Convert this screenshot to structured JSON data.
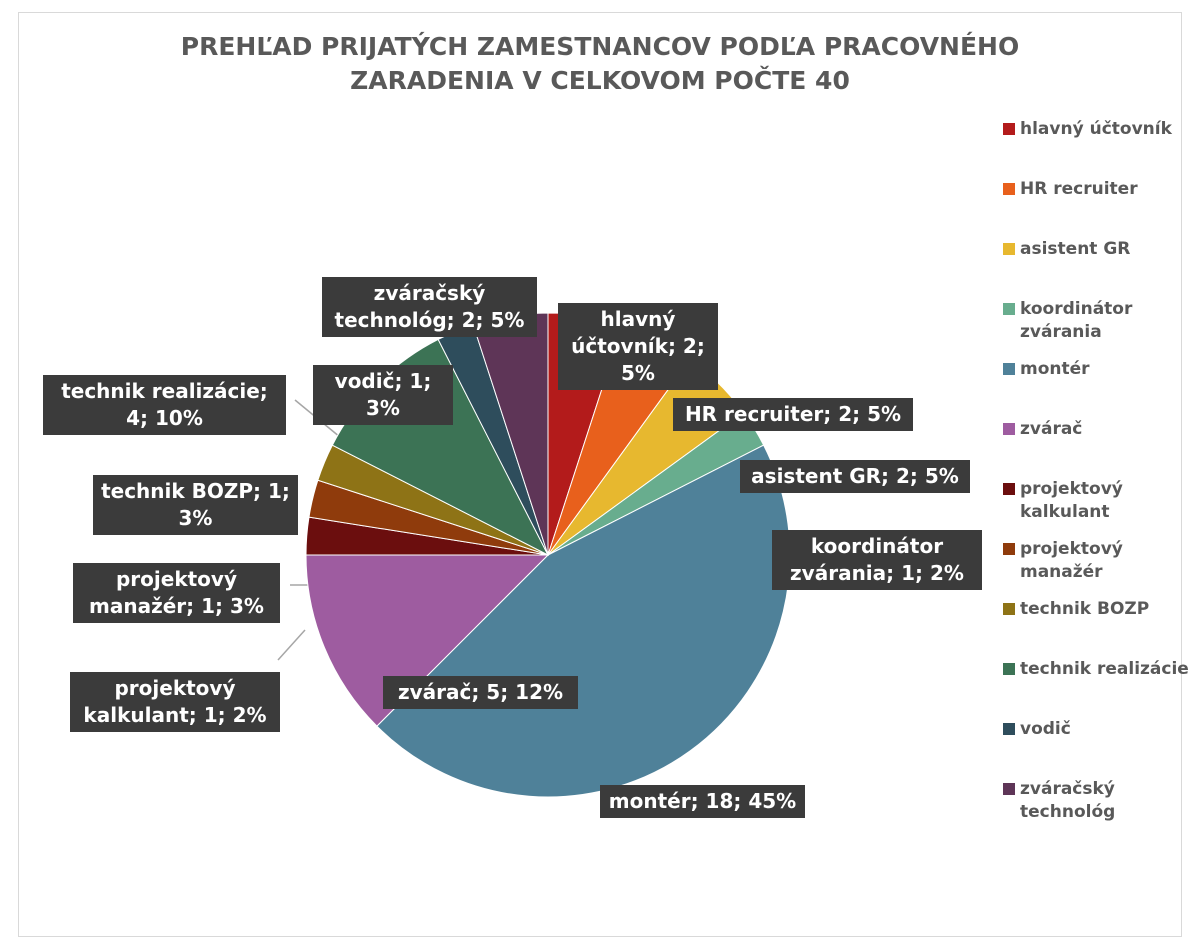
{
  "chart_data": {
    "type": "pie",
    "title": "PREHĽAD PRIJATÝCH ZAMESTNANCOV PODĽA PRACOVNÉHO ZARADENIA V CELKOVOM POČTE 40",
    "categories": [
      "hlavný účtovník",
      "HR recruiter",
      "asistent GR",
      "koordinátor zvárania",
      "montér",
      "zvárač",
      "projektový kalkulant",
      "projektový manažér",
      "technik BOZP",
      "technik realizácie",
      "vodič",
      "zváračský technológ"
    ],
    "values": [
      2,
      2,
      2,
      1,
      18,
      5,
      1,
      1,
      1,
      4,
      1,
      2
    ],
    "value_labels": [
      "hlavný účtovník; 2; 5%",
      "HR recruiter; 2; 5%",
      "asistent GR; 2; 5%",
      "koordinátor zvárania; 1; 2%",
      "montér; 18; 45%",
      "zvárač; 5; 12%",
      "projektový kalkulant; 1; 2%",
      "projektový manažér; 1; 3%",
      "technik BOZP; 1; 3%",
      "technik realizácie; 4; 10%",
      "vodič; 1; 3%",
      "zváračský technológ; 2; 5%"
    ],
    "colors": [
      "#b31b1b",
      "#e8601c",
      "#e7b82f",
      "#68ad8e",
      "#4f8199",
      "#9e5ca0",
      "#6b0e0e",
      "#8f3b0c",
      "#8e7316",
      "#3c7355",
      "#2e4d5c",
      "#5e3557"
    ],
    "legend": "right"
  }
}
